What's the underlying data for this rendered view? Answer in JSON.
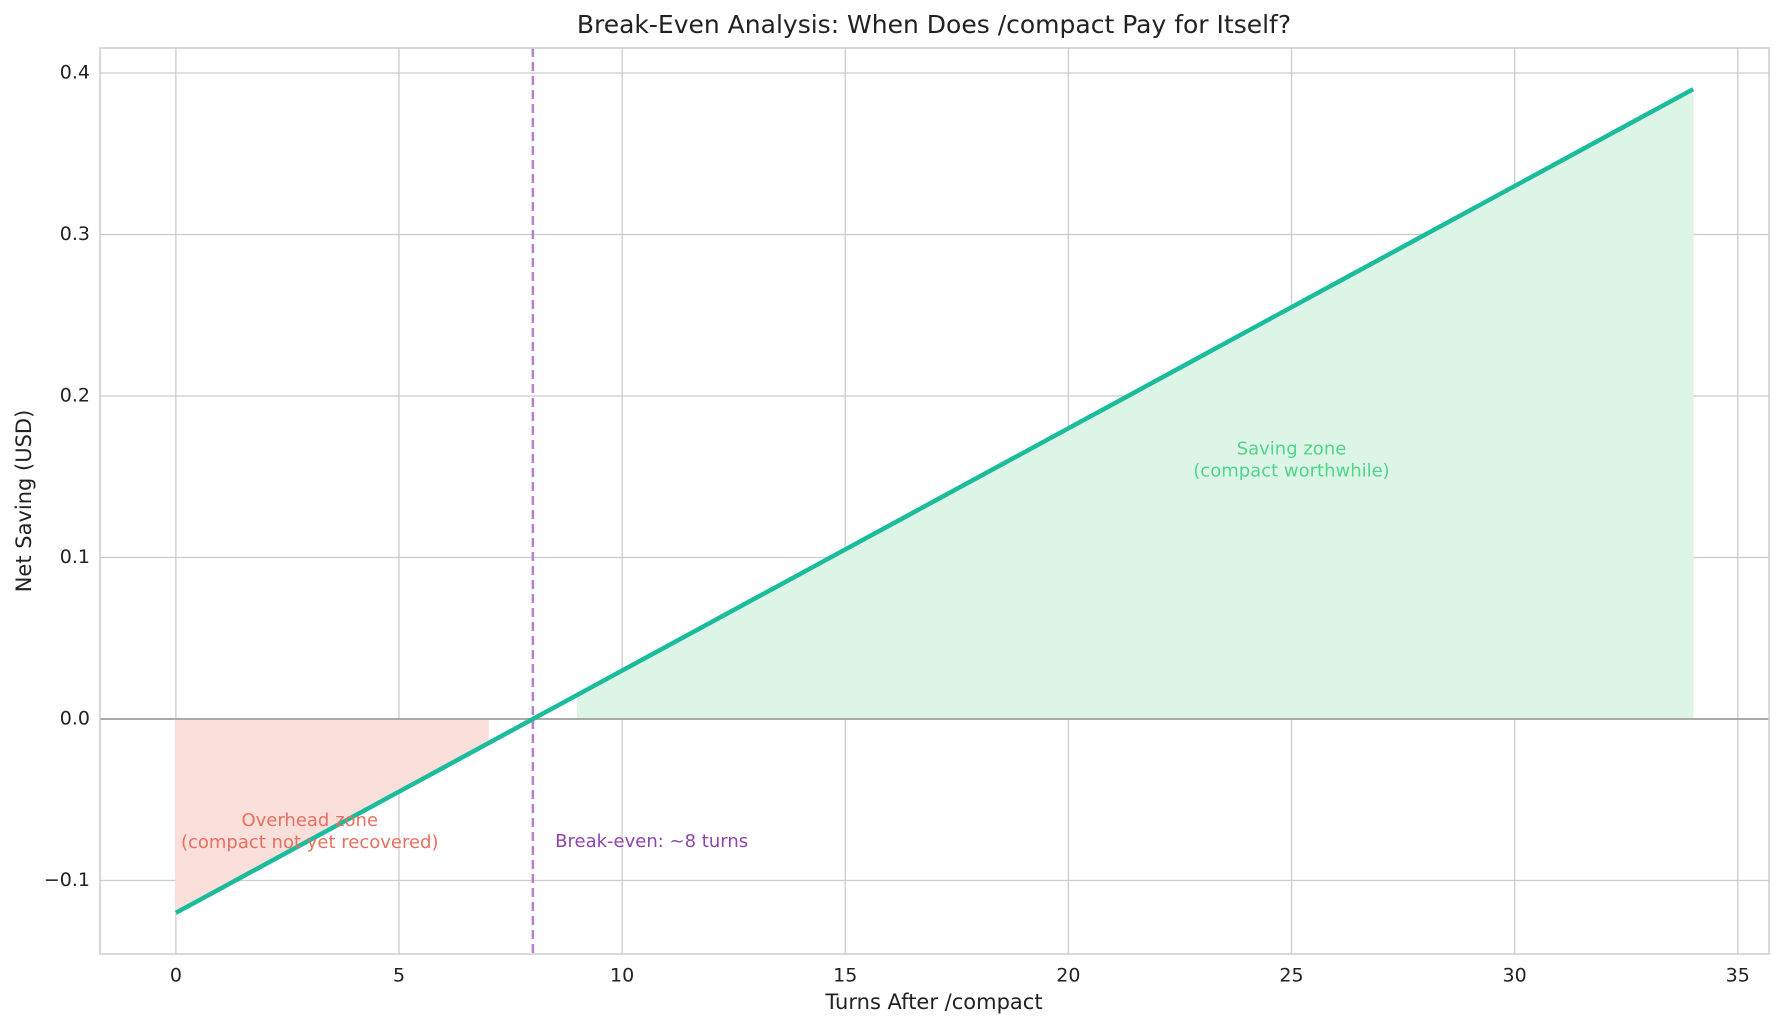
{
  "chart_data": {
    "type": "line",
    "title": "Break-Even Analysis: When Does /compact Pay for Itself?",
    "x_label": "Turns After /compact",
    "y_label": "Net Saving (USD)",
    "x": [
      0,
      1,
      2,
      3,
      4,
      5,
      6,
      7,
      8,
      9,
      10,
      11,
      12,
      13,
      14,
      15,
      16,
      17,
      18,
      19,
      20,
      21,
      22,
      23,
      24,
      25,
      26,
      27,
      28,
      29,
      30,
      31,
      32,
      33,
      34
    ],
    "values": [
      -0.12,
      -0.105,
      -0.09,
      -0.075,
      -0.06,
      -0.045,
      -0.03,
      -0.015,
      0,
      0.015,
      0.03,
      0.045,
      0.06,
      0.075,
      0.09,
      0.105,
      0.12,
      0.135,
      0.15,
      0.165,
      0.18,
      0.195,
      0.21,
      0.225,
      0.24,
      0.255,
      0.27,
      0.285,
      0.3,
      0.315,
      0.33,
      0.345,
      0.36,
      0.375,
      0.39
    ],
    "color": "#1abc9c",
    "negative_fill": "#fadfdb",
    "positive_fill": "#ddf5e6",
    "xlim": [
      -1.7,
      35.7
    ],
    "ylim": [
      -0.1455,
      0.4155
    ],
    "xticks": [
      0,
      5,
      10,
      15,
      20,
      25,
      30,
      35
    ],
    "yticks": [
      {
        "value": -0.1,
        "label": "−0.1"
      },
      {
        "value": 0,
        "label": "0.0"
      },
      0.1,
      0.2,
      0.3,
      0.4
    ],
    "grid": true,
    "hline": {
      "y": 0,
      "color": "#aaaaaa"
    },
    "vline": {
      "x": 8,
      "color": "#b57fd6"
    },
    "annotations": [
      {
        "lines": [
          "Overhead zone",
          "(compact not yet recovered)"
        ],
        "x": 3,
        "y": -0.07,
        "color": "#e8705f",
        "align": "middle"
      },
      {
        "lines": [
          "Saving zone",
          "(compact worthwhile)"
        ],
        "x": 25,
        "y": 0.16,
        "color": "#4fd68a",
        "align": "middle"
      },
      {
        "lines": [
          "Break-even: ~8 turns"
        ],
        "x": 8.5,
        "y": -0.076,
        "color": "#8e44ad",
        "align": "start"
      }
    ]
  }
}
